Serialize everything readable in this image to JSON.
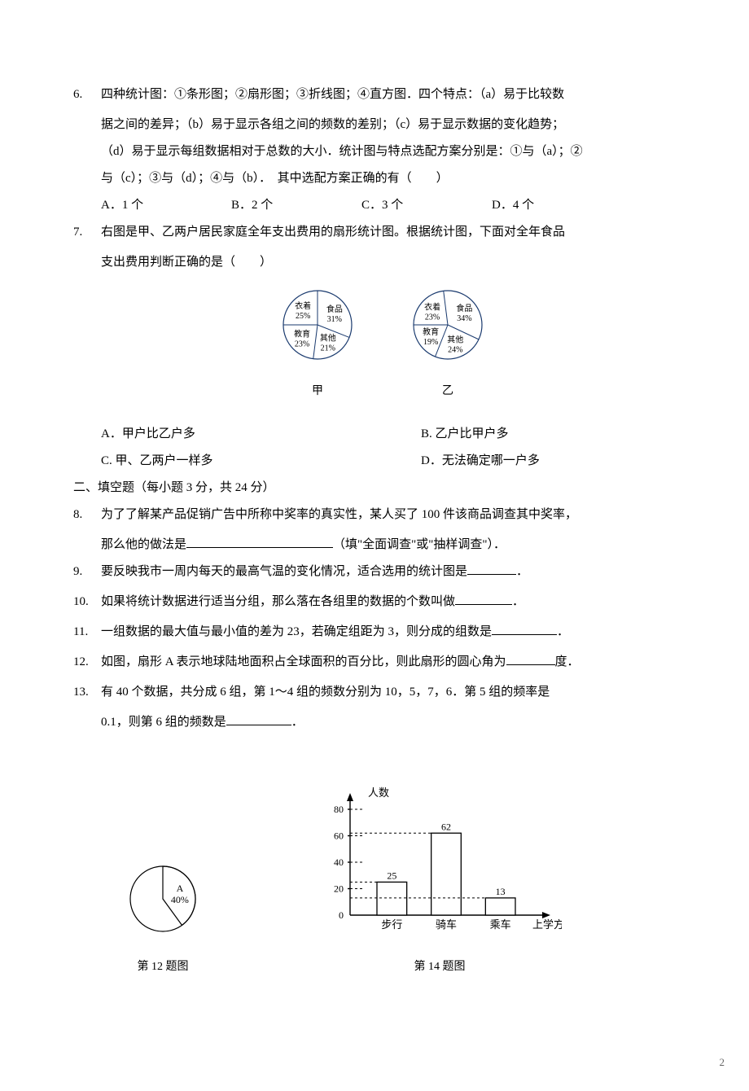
{
  "q6": {
    "num": "6.",
    "text_l1": "四种统计图：①条形图；②扇形图；③折线图；④直方图．四个特点：（a）易于比较数",
    "text_l2": "据之间的差异；（b）易于显示各组之间的频数的差别；（c）易于显示数据的变化趋势；",
    "text_l3": "（d）易于显示每组数据相对于总数的大小．统计图与特点选配方案分别是：①与（a）；②",
    "text_l4": "与（c）；③与（d）；④与（b）．　其中选配方案正确的有（　　）",
    "opts": {
      "a": "A．1 个",
      "b": "B．2 个",
      "c": "C．3 个",
      "d": "D．4 个"
    }
  },
  "q7": {
    "num": "7.",
    "text_l1": "右图是甲、乙两户居民家庭全年支出费用的扇形统计图。根据统计图，下面对全年食品",
    "text_l2": "支出费用判断正确的是（　　）",
    "opts": {
      "a": "A．甲户比乙户多",
      "b": "B. 乙户比甲户多",
      "c": "C. 甲、乙两户一样多",
      "d": "D．无法确定哪一户多"
    },
    "pie": {
      "jia": {
        "label": "甲",
        "slices": [
          {
            "name": "衣着",
            "pct": "25%",
            "pctVal": 25
          },
          {
            "name": "食品",
            "pct": "31%",
            "pctVal": 31
          },
          {
            "name": "其他",
            "pct": "21%",
            "pctVal": 21
          },
          {
            "name": "教育",
            "pct": "23%",
            "pctVal": 23
          }
        ]
      },
      "yi": {
        "label": "乙",
        "slices": [
          {
            "name": "衣着",
            "pct": "23%",
            "pctVal": 23
          },
          {
            "name": "食品",
            "pct": "34%",
            "pctVal": 34
          },
          {
            "name": "其他",
            "pct": "24%",
            "pctVal": 24
          },
          {
            "name": "教育",
            "pct": "19%",
            "pctVal": 19
          }
        ]
      },
      "style": {
        "radius": 42,
        "stroke": "#1a3a6e",
        "fill": "#ffffff",
        "textSize": 10
      }
    }
  },
  "section2": "二、填空题（每小题 3 分，共 24 分）",
  "q8": {
    "num": "8.",
    "text_l1": "为了了解某产品促销广告中所称中奖率的真实性，某人买了 100 件该商品调查其中奖率，",
    "text_l2_a": "那么他的做法是",
    "text_l2_b": "（填\"全面调查\"或\"抽样调查\"）．"
  },
  "q9": {
    "num": "9.",
    "text_a": "要反映我市一周内每天的最高气温的变化情况，适合选用的统计图是",
    "text_b": "．"
  },
  "q10": {
    "num": "10.",
    "text_a": "如果将统计数据进行适当分组，那么落在各组里的数据的个数叫做",
    "text_b": "．"
  },
  "q11": {
    "num": "11.",
    "text_a": "一组数据的最大值与最小值的差为 23，若确定组距为 3，则分成的组数是",
    "text_b": "．"
  },
  "q12": {
    "num": "12.",
    "text_a": "如图，扇形 A 表示地球陆地面积占全球面积的百分比，则此扇形的圆心角为",
    "text_b": "度．"
  },
  "q13": {
    "num": "13.",
    "text_l1": "有 40 个数据，共分成 6 组，第 1～4 组的频数分别为 10，5，7，6．第 5 组的频率是",
    "text_l2_a": "0.1，则第 6 组的频数是",
    "text_l2_b": "．"
  },
  "fig12": {
    "caption": "第 12 题图",
    "pie": {
      "label": "A",
      "pct": "40%",
      "pctVal": 40,
      "radius": 40,
      "stroke": "#000000",
      "fill_slice": "#000000",
      "bg": "#ffffff"
    }
  },
  "fig14": {
    "caption": "第 14 题图",
    "chart": {
      "type": "bar",
      "ylabel": "人数",
      "xlabel": "上学方式",
      "categories": [
        "步行",
        "骑车",
        "乘车"
      ],
      "values": [
        25,
        62,
        13
      ],
      "value_labels": [
        "25",
        "62",
        "13"
      ],
      "ylim": [
        0,
        80
      ],
      "ytick_step": 20,
      "yticks": [
        "0",
        "20",
        "40",
        "60",
        "80"
      ],
      "bar_fill": "#ffffff",
      "bar_stroke": "#000000",
      "bg": "#ffffff",
      "axis_color": "#000000",
      "dash_color": "#000000",
      "label_fontsize": 12
    }
  },
  "pagenum": "2"
}
